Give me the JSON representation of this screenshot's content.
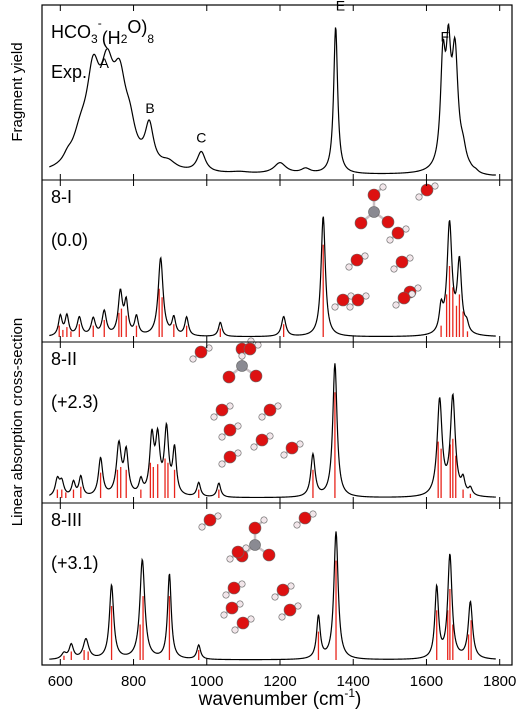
{
  "chart_data": {
    "type": "line",
    "xlabel_main": "wavenumber (cm",
    "xlabel_sup": "-1",
    "xlabel_tail": ")",
    "ylabel_top": "Fragment  yield",
    "ylabel_bottom": "Linear absorption cross-section",
    "xlim": [
      550,
      1850
    ],
    "xticks": [
      600,
      800,
      1000,
      1200,
      1400,
      1600,
      1800
    ],
    "colors": {
      "trace": "#000000",
      "stick": "#e8251c",
      "oxygen": "#dd1111",
      "carbon": "#8a8a92",
      "hydrogen": "#f2e6ea"
    },
    "panels": [
      {
        "label": "HCO3-(H2O)8",
        "label_parts": [
          "HCO",
          "3",
          "-",
          "(H",
          "2",
          "O)",
          "8"
        ],
        "sublabel": "Exp.",
        "peak_labels": [
          {
            "text": "A",
            "x": 720,
            "y": 0.69
          },
          {
            "text": "B",
            "x": 845,
            "y": 0.4
          },
          {
            "text": "C",
            "x": 985,
            "y": 0.21
          },
          {
            "text": "E",
            "x": 1365,
            "y": 1.06
          },
          {
            "text": "F",
            "x": 1650,
            "y": 0.86
          }
        ],
        "peaks": [
          {
            "x": 620,
            "h": 0.04,
            "w": 14
          },
          {
            "x": 655,
            "h": 0.17,
            "w": 25
          },
          {
            "x": 690,
            "h": 0.54,
            "w": 22
          },
          {
            "x": 728,
            "h": 0.5,
            "w": 22
          },
          {
            "x": 762,
            "h": 0.48,
            "w": 22
          },
          {
            "x": 790,
            "h": 0.18,
            "w": 18
          },
          {
            "x": 843,
            "h": 0.26,
            "w": 14
          },
          {
            "x": 895,
            "h": 0.05,
            "w": 25
          },
          {
            "x": 985,
            "h": 0.13,
            "w": 14
          },
          {
            "x": 1090,
            "h": 0.01,
            "w": 30
          },
          {
            "x": 1200,
            "h": 0.07,
            "w": 20
          },
          {
            "x": 1270,
            "h": 0.03,
            "w": 15
          },
          {
            "x": 1352,
            "h": 0.95,
            "w": 6.5
          },
          {
            "x": 1645,
            "h": 0.66,
            "w": 8
          },
          {
            "x": 1660,
            "h": 0.65,
            "w": 8
          },
          {
            "x": 1678,
            "h": 0.72,
            "w": 10
          },
          {
            "x": 1700,
            "h": 0.1,
            "w": 10
          },
          {
            "x": 1735,
            "h": 0.015,
            "w": 8
          }
        ],
        "sticks": []
      },
      {
        "label": "8-I",
        "energy": "(0.0)",
        "peaks": [
          {
            "x": 600,
            "h": 0.14,
            "w": 6
          },
          {
            "x": 618,
            "h": 0.14,
            "w": 6
          },
          {
            "x": 652,
            "h": 0.13,
            "w": 7
          },
          {
            "x": 690,
            "h": 0.12,
            "w": 7
          },
          {
            "x": 720,
            "h": 0.17,
            "w": 7
          },
          {
            "x": 764,
            "h": 0.3,
            "w": 7
          },
          {
            "x": 780,
            "h": 0.22,
            "w": 6
          },
          {
            "x": 808,
            "h": 0.13,
            "w": 6
          },
          {
            "x": 874,
            "h": 0.55,
            "w": 8
          },
          {
            "x": 910,
            "h": 0.12,
            "w": 6
          },
          {
            "x": 945,
            "h": 0.13,
            "w": 6
          },
          {
            "x": 1037,
            "h": 0.1,
            "w": 6
          },
          {
            "x": 1210,
            "h": 0.14,
            "w": 7
          },
          {
            "x": 1318,
            "h": 0.85,
            "w": 7
          },
          {
            "x": 1640,
            "h": 0.17,
            "w": 6
          },
          {
            "x": 1663,
            "h": 0.78,
            "w": 8
          },
          {
            "x": 1690,
            "h": 0.5,
            "w": 7
          },
          {
            "x": 1710,
            "h": 0.06,
            "w": 6
          }
        ],
        "sticks": [
          {
            "x": 597,
            "h": 0.08
          },
          {
            "x": 607,
            "h": 0.05
          },
          {
            "x": 618,
            "h": 0.07
          },
          {
            "x": 629,
            "h": 0.04
          },
          {
            "x": 652,
            "h": 0.09
          },
          {
            "x": 690,
            "h": 0.08
          },
          {
            "x": 720,
            "h": 0.12
          },
          {
            "x": 760,
            "h": 0.17
          },
          {
            "x": 767,
            "h": 0.2
          },
          {
            "x": 780,
            "h": 0.15
          },
          {
            "x": 808,
            "h": 0.08
          },
          {
            "x": 870,
            "h": 0.34
          },
          {
            "x": 878,
            "h": 0.28
          },
          {
            "x": 910,
            "h": 0.09
          },
          {
            "x": 945,
            "h": 0.08
          },
          {
            "x": 1037,
            "h": 0.06
          },
          {
            "x": 1210,
            "h": 0.09
          },
          {
            "x": 1318,
            "h": 0.65
          },
          {
            "x": 1640,
            "h": 0.08
          },
          {
            "x": 1655,
            "h": 0.3
          },
          {
            "x": 1663,
            "h": 0.5
          },
          {
            "x": 1672,
            "h": 0.35
          },
          {
            "x": 1682,
            "h": 0.22
          },
          {
            "x": 1690,
            "h": 0.3
          },
          {
            "x": 1700,
            "h": 0.18
          },
          {
            "x": 1712,
            "h": 0.04
          }
        ]
      },
      {
        "label": "8-II",
        "energy": "(+2.3)",
        "peaks": [
          {
            "x": 592,
            "h": 0.12,
            "w": 7
          },
          {
            "x": 604,
            "h": 0.1,
            "w": 7
          },
          {
            "x": 636,
            "h": 0.1,
            "w": 6
          },
          {
            "x": 656,
            "h": 0.14,
            "w": 6
          },
          {
            "x": 710,
            "h": 0.27,
            "w": 7
          },
          {
            "x": 760,
            "h": 0.36,
            "w": 8
          },
          {
            "x": 780,
            "h": 0.3,
            "w": 7
          },
          {
            "x": 820,
            "h": 0.1,
            "w": 6
          },
          {
            "x": 850,
            "h": 0.4,
            "w": 7
          },
          {
            "x": 866,
            "h": 0.38,
            "w": 7
          },
          {
            "x": 890,
            "h": 0.46,
            "w": 7
          },
          {
            "x": 912,
            "h": 0.32,
            "w": 6
          },
          {
            "x": 978,
            "h": 0.1,
            "w": 6
          },
          {
            "x": 1033,
            "h": 0.1,
            "w": 6
          },
          {
            "x": 1290,
            "h": 0.3,
            "w": 7
          },
          {
            "x": 1350,
            "h": 0.95,
            "w": 7
          },
          {
            "x": 1636,
            "h": 0.68,
            "w": 8
          },
          {
            "x": 1672,
            "h": 0.7,
            "w": 8
          },
          {
            "x": 1700,
            "h": 0.1,
            "w": 6
          },
          {
            "x": 1720,
            "h": 0.05,
            "w": 6
          }
        ],
        "sticks": [
          {
            "x": 592,
            "h": 0.06
          },
          {
            "x": 604,
            "h": 0.06
          },
          {
            "x": 615,
            "h": 0.04
          },
          {
            "x": 636,
            "h": 0.06
          },
          {
            "x": 656,
            "h": 0.08
          },
          {
            "x": 710,
            "h": 0.18
          },
          {
            "x": 756,
            "h": 0.2
          },
          {
            "x": 765,
            "h": 0.22
          },
          {
            "x": 780,
            "h": 0.2
          },
          {
            "x": 820,
            "h": 0.06
          },
          {
            "x": 846,
            "h": 0.25
          },
          {
            "x": 854,
            "h": 0.22
          },
          {
            "x": 866,
            "h": 0.24
          },
          {
            "x": 886,
            "h": 0.28
          },
          {
            "x": 894,
            "h": 0.25
          },
          {
            "x": 912,
            "h": 0.2
          },
          {
            "x": 978,
            "h": 0.06
          },
          {
            "x": 1033,
            "h": 0.06
          },
          {
            "x": 1290,
            "h": 0.2
          },
          {
            "x": 1350,
            "h": 0.75
          },
          {
            "x": 1632,
            "h": 0.4
          },
          {
            "x": 1640,
            "h": 0.35
          },
          {
            "x": 1665,
            "h": 0.38
          },
          {
            "x": 1672,
            "h": 0.42
          },
          {
            "x": 1680,
            "h": 0.3
          },
          {
            "x": 1700,
            "h": 0.06
          },
          {
            "x": 1720,
            "h": 0.03
          }
        ]
      },
      {
        "label": "8-III",
        "energy": "(+3.1)",
        "peaks": [
          {
            "x": 610,
            "h": 0.04,
            "w": 8
          },
          {
            "x": 630,
            "h": 0.1,
            "w": 7
          },
          {
            "x": 670,
            "h": 0.14,
            "w": 9
          },
          {
            "x": 740,
            "h": 0.52,
            "w": 7
          },
          {
            "x": 824,
            "h": 0.7,
            "w": 8
          },
          {
            "x": 898,
            "h": 0.6,
            "w": 6
          },
          {
            "x": 978,
            "h": 0.1,
            "w": 6
          },
          {
            "x": 1305,
            "h": 0.3,
            "w": 6
          },
          {
            "x": 1353,
            "h": 0.9,
            "w": 7
          },
          {
            "x": 1628,
            "h": 0.5,
            "w": 6
          },
          {
            "x": 1664,
            "h": 0.73,
            "w": 7
          },
          {
            "x": 1720,
            "h": 0.4,
            "w": 7
          }
        ],
        "sticks": [
          {
            "x": 610,
            "h": 0.03
          },
          {
            "x": 630,
            "h": 0.06
          },
          {
            "x": 665,
            "h": 0.07
          },
          {
            "x": 676,
            "h": 0.06
          },
          {
            "x": 740,
            "h": 0.38
          },
          {
            "x": 818,
            "h": 0.25
          },
          {
            "x": 826,
            "h": 0.45
          },
          {
            "x": 898,
            "h": 0.45
          },
          {
            "x": 978,
            "h": 0.07
          },
          {
            "x": 1305,
            "h": 0.2
          },
          {
            "x": 1353,
            "h": 0.7
          },
          {
            "x": 1628,
            "h": 0.35
          },
          {
            "x": 1658,
            "h": 0.35
          },
          {
            "x": 1664,
            "h": 0.5
          },
          {
            "x": 1672,
            "h": 0.25
          },
          {
            "x": 1715,
            "h": 0.18
          },
          {
            "x": 1722,
            "h": 0.28
          }
        ]
      }
    ]
  }
}
